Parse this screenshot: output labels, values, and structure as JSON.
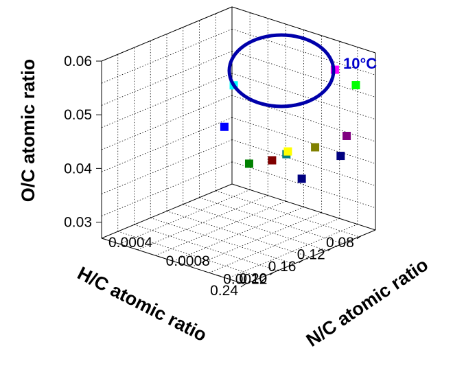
{
  "chart_data": {
    "type": "scatter",
    "dimensions": 3,
    "title": "",
    "xlabel": "H/C atomic ratio",
    "ylabel": "N/C atomic ratio",
    "zlabel": "O/C atomic ratio",
    "xlim": [
      0.06,
      0.24
    ],
    "ylim": [
      0.0004,
      0.0014
    ],
    "zlim": [
      0.027,
      0.06
    ],
    "x_ticks": [
      "0.08",
      "0.12",
      "0.16",
      "0.20",
      "0.24"
    ],
    "y_ticks": [
      "0.0004",
      "0.0008",
      "0.0012"
    ],
    "z_ticks": [
      "0.03",
      "0.04",
      "0.05",
      "0.06"
    ],
    "grid": true,
    "marker": "square",
    "points": [
      {
        "x": 0.072,
        "y": 0.00058,
        "z": 0.033,
        "color": "#008000"
      },
      {
        "x": 0.072,
        "y": 0.00074,
        "z": 0.035,
        "color": "#800000"
      },
      {
        "x": 0.072,
        "y": 0.00084,
        "z": 0.037,
        "color": "#008080"
      },
      {
        "x": 0.066,
        "y": 0.00082,
        "z": 0.037,
        "color": "#ffff00"
      },
      {
        "x": 0.072,
        "y": 0.00104,
        "z": 0.04,
        "color": "#808000"
      },
      {
        "x": 0.072,
        "y": 0.00126,
        "z": 0.044,
        "color": "#800080"
      },
      {
        "x": 0.108,
        "y": 0.0014,
        "z": 0.0435,
        "color": "#000080"
      },
      {
        "x": 0.134,
        "y": 0.00126,
        "z": 0.0395,
        "color": "#000080"
      },
      {
        "x": 0.087,
        "y": 0.0014,
        "z": 0.0555,
        "color": "#00ff00"
      },
      {
        "x": 0.116,
        "y": 0.0014,
        "z": 0.06,
        "color": "#ff00ff"
      },
      {
        "x": 0.216,
        "y": 0.0012,
        "z": 0.061,
        "color": "#00ffff"
      },
      {
        "x": 0.219,
        "y": 0.00115,
        "z": 0.053,
        "color": "#0000ff"
      }
    ],
    "annotations": [
      {
        "text": "10°C",
        "color": "#0000cc",
        "encircles": "last four points (upper group)"
      }
    ]
  }
}
